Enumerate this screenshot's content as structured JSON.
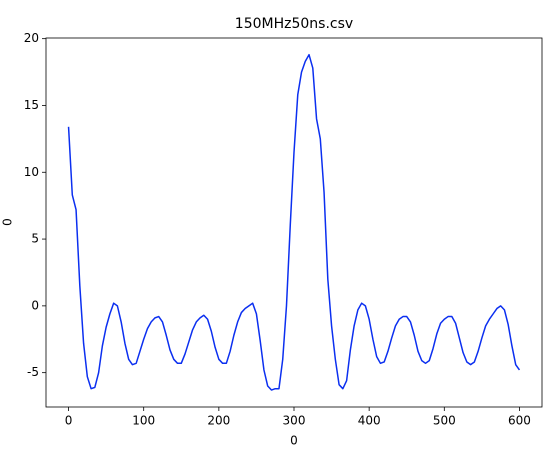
{
  "chart_data": {
    "type": "line",
    "title": "150MHz50ns.csv",
    "x_label": "0",
    "y_label": "0",
    "x": [
      0,
      5,
      10,
      15,
      20,
      25,
      30,
      35,
      40,
      45,
      50,
      55,
      60,
      65,
      70,
      75,
      80,
      85,
      90,
      95,
      100,
      105,
      110,
      115,
      120,
      125,
      130,
      135,
      140,
      145,
      150,
      155,
      160,
      165,
      170,
      175,
      180,
      185,
      190,
      195,
      200,
      205,
      210,
      215,
      220,
      225,
      230,
      235,
      240,
      245,
      250,
      255,
      260,
      265,
      270,
      275,
      280,
      285,
      290,
      295,
      300,
      305,
      310,
      315,
      320,
      325,
      330,
      335,
      340,
      345,
      350,
      355,
      360,
      365,
      370,
      375,
      380,
      385,
      390,
      395,
      400,
      405,
      410,
      415,
      420,
      425,
      430,
      435,
      440,
      445,
      450,
      455,
      460,
      465,
      470,
      475,
      480,
      485,
      490,
      495,
      500,
      505,
      510,
      515,
      520,
      525,
      530,
      535,
      540,
      545,
      550,
      555,
      560,
      565,
      570,
      575,
      580,
      585,
      590,
      595,
      600
    ],
    "series": [
      {
        "name": "0",
        "color": "#0b2ff0",
        "values": [
          13.4,
          8.3,
          7.2,
          1.5,
          -2.8,
          -5.3,
          -6.2,
          -6.1,
          -5,
          -3,
          -1.6,
          -0.6,
          0.2,
          0,
          -1.2,
          -2.8,
          -4,
          -4.4,
          -4.3,
          -3.4,
          -2.5,
          -1.7,
          -1.2,
          -0.9,
          -0.8,
          -1.2,
          -2.2,
          -3.3,
          -4,
          -4.3,
          -4.3,
          -3.6,
          -2.7,
          -1.8,
          -1.2,
          -0.9,
          -0.7,
          -1,
          -1.9,
          -3.1,
          -4,
          -4.3,
          -4.3,
          -3.4,
          -2.2,
          -1.2,
          -0.5,
          -0.2,
          0,
          0.2,
          -0.6,
          -2.6,
          -4.8,
          -6,
          -6.3,
          -6.2,
          -6.2,
          -4,
          0,
          6,
          11.5,
          15.8,
          17.5,
          18.3,
          18.8,
          17.8,
          14,
          12.5,
          8.5,
          2,
          -1.5,
          -4,
          -5.9,
          -6.2,
          -5.6,
          -3.3,
          -1.5,
          -0.3,
          0.2,
          0,
          -1,
          -2.5,
          -3.8,
          -4.3,
          -4.2,
          -3.4,
          -2.4,
          -1.5,
          -1,
          -0.8,
          -0.8,
          -1.2,
          -2.2,
          -3.4,
          -4.1,
          -4.3,
          -4.1,
          -3.2,
          -2.1,
          -1.3,
          -1,
          -0.8,
          -0.8,
          -1.3,
          -2.4,
          -3.5,
          -4.2,
          -4.4,
          -4.2,
          -3.4,
          -2.4,
          -1.5,
          -1,
          -0.6,
          -0.2,
          0,
          -0.3,
          -1.4,
          -3,
          -4.4,
          -4.8
        ]
      }
    ],
    "xlim": [
      -30,
      630
    ],
    "xticks": [
      0,
      100,
      200,
      300,
      400,
      500,
      600
    ],
    "ylim": [
      -7.57,
      20.05
    ],
    "yticks": [
      -5,
      0,
      5,
      10,
      15,
      20
    ],
    "grid": false
  }
}
